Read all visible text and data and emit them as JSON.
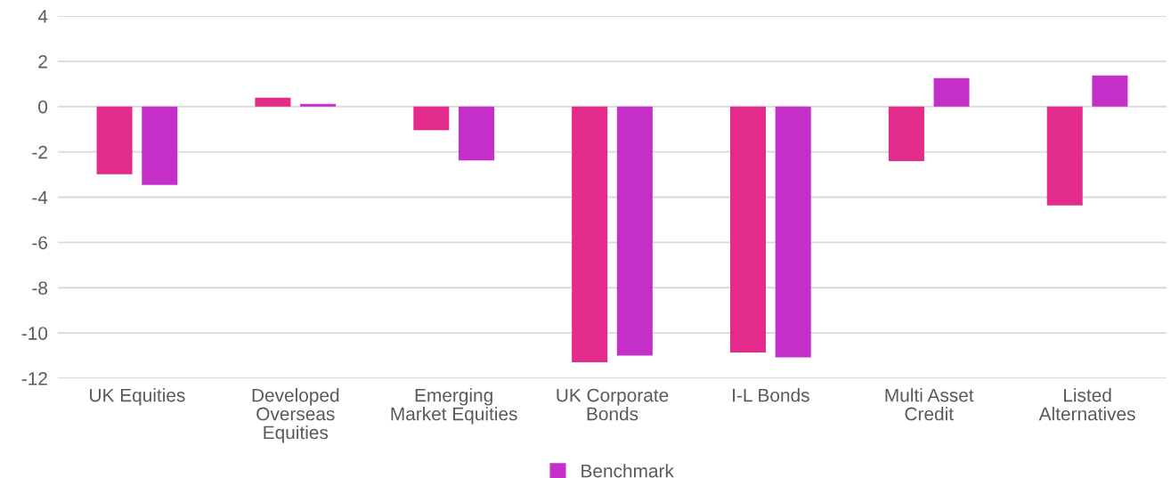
{
  "chart_data": {
    "type": "bar",
    "categories": [
      "UK Equities",
      "Developed\nOverseas\nEquities",
      "Emerging\nMarket Equities",
      "UK Corporate\nBonds",
      "I-L Bonds",
      "Multi Asset\nCredit",
      "Listed\nAlternatives"
    ],
    "series": [
      {
        "color": "#e22b8a",
        "values": [
          -2.99,
          0.39,
          -1.04,
          -11.29,
          -10.86,
          -2.41,
          -4.36
        ]
      },
      {
        "name": "Benchmark",
        "color": "#c42fc8",
        "values": [
          -3.46,
          0.12,
          -2.38,
          -11.0,
          -11.08,
          1.26,
          1.38
        ]
      }
    ],
    "ylim": [
      -12,
      4
    ],
    "yticks": [
      -12,
      -10,
      -8,
      -6,
      -4,
      -2,
      0,
      2,
      4
    ],
    "grid": "y",
    "legend": "bottom"
  }
}
